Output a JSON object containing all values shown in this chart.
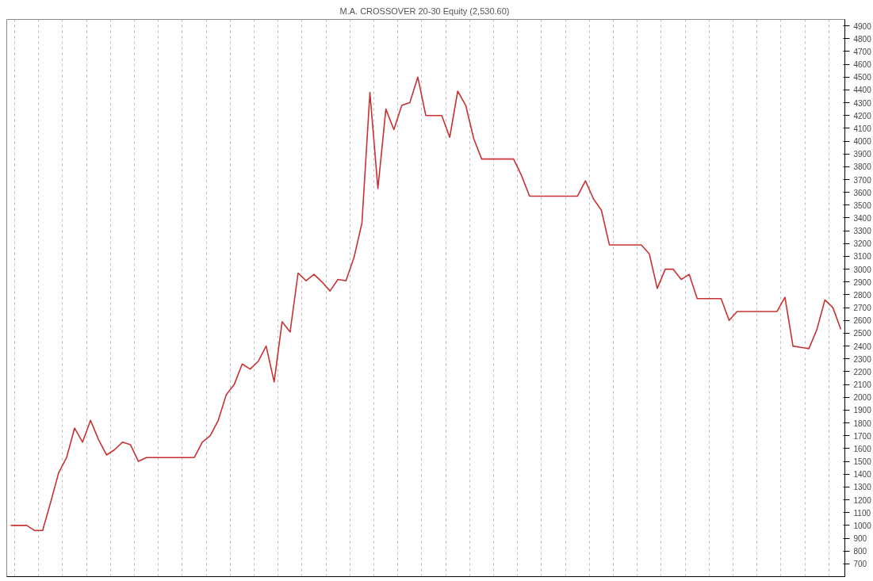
{
  "chart_data": {
    "type": "line",
    "title": "M.A. CROSSOVER 20-30  Equity (2,530.60)",
    "categories": [
      null,
      null,
      null,
      null,
      null,
      null,
      null,
      null,
      null,
      null,
      null,
      null,
      null,
      null,
      null,
      null,
      null,
      null,
      null,
      null,
      null,
      null,
      null,
      null,
      null,
      null,
      null,
      null,
      null,
      null,
      null,
      null,
      null,
      null,
      null,
      null,
      null,
      null,
      null,
      null,
      null,
      null,
      null,
      null,
      null,
      null,
      null,
      null,
      null,
      null,
      null,
      null,
      null,
      null,
      null,
      null,
      null,
      null,
      null,
      null,
      null,
      null,
      null,
      null,
      null,
      null,
      null,
      null,
      null,
      null,
      null,
      null,
      null,
      null,
      null,
      null,
      null,
      null,
      null,
      null,
      null,
      null,
      null,
      null,
      null,
      null,
      null,
      null,
      null,
      null,
      null,
      null,
      null,
      null,
      null,
      null,
      null,
      null,
      null,
      null,
      null,
      null,
      null,
      null,
      null
    ],
    "values": [
      1000,
      1000,
      1000,
      960,
      960,
      1180,
      1410,
      1530,
      1760,
      1650,
      1820,
      1670,
      1550,
      1590,
      1650,
      1630,
      1500,
      1530,
      1530,
      1530,
      1530,
      1530,
      1530,
      1530,
      1650,
      1700,
      1820,
      2020,
      2100,
      2260,
      2220,
      2280,
      2400,
      2120,
      2590,
      2510,
      2970,
      2910,
      2960,
      2900,
      2830,
      2920,
      2910,
      3090,
      3360,
      4380,
      3630,
      4250,
      4090,
      4280,
      4300,
      4500,
      4200,
      4200,
      4200,
      4030,
      4390,
      4280,
      4020,
      3860,
      3860,
      3860,
      3860,
      3860,
      3730,
      3570,
      3570,
      3570,
      3570,
      3570,
      3570,
      3570,
      3690,
      3550,
      3460,
      3190,
      3190,
      3190,
      3190,
      3190,
      3120,
      2850,
      3000,
      3000,
      2920,
      2960,
      2770,
      2770,
      2770,
      2770,
      2600,
      2670,
      2670,
      2670,
      2670,
      2670,
      2670,
      2780,
      2400,
      2390,
      2380,
      2530,
      2760,
      2700,
      2530
    ],
    "color": "#c83232",
    "ylim": [
      600,
      4950
    ],
    "yticks": [
      700,
      800,
      900,
      1000,
      1100,
      1200,
      1300,
      1400,
      1500,
      1600,
      1700,
      1800,
      1900,
      2000,
      2100,
      2200,
      2300,
      2400,
      2500,
      2600,
      2700,
      2800,
      2900,
      3000,
      3100,
      3200,
      3300,
      3400,
      3500,
      3600,
      3700,
      3800,
      3900,
      4000,
      4100,
      4200,
      4300,
      4400,
      4500,
      4600,
      4700,
      4800,
      4900
    ],
    "grid": "x",
    "line_style": "solid"
  }
}
